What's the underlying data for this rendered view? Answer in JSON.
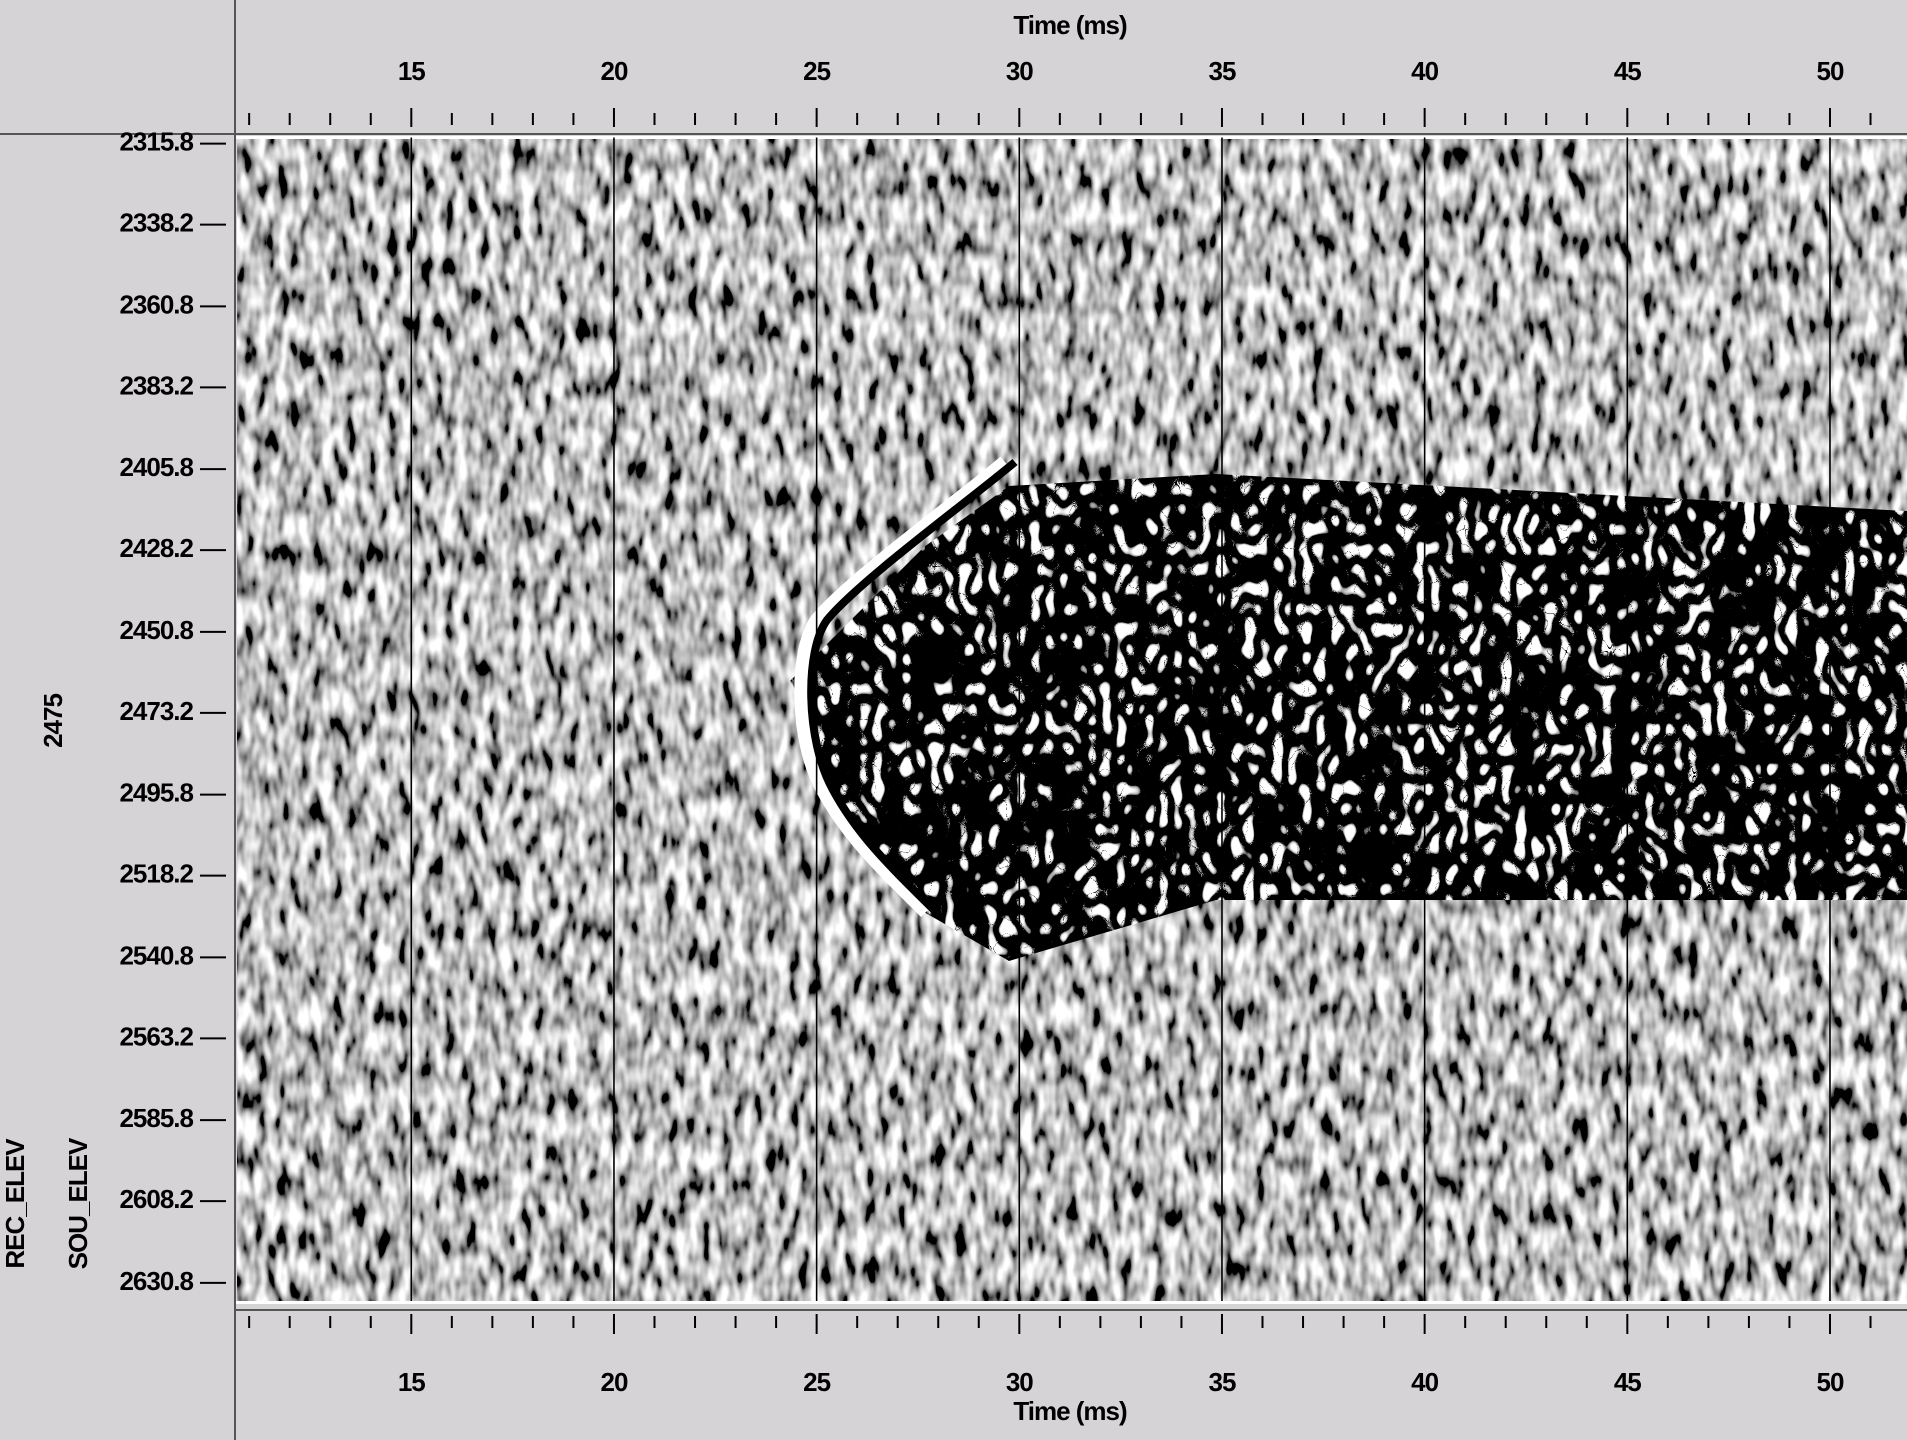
{
  "chart_data": {
    "type": "seismic",
    "x_label": "Time (ms)",
    "y_header": "2475",
    "y_labels": [
      "REC_ELEV",
      "SOU_ELEV"
    ],
    "xlim": [
      10.7,
      51.9
    ],
    "xticks": [
      15,
      20,
      25,
      30,
      35,
      40,
      45,
      50
    ],
    "xminorticks": [
      11,
      12,
      13,
      14,
      16,
      17,
      18,
      19,
      21,
      22,
      23,
      24,
      26,
      27,
      28,
      29,
      31,
      32,
      33,
      34,
      36,
      37,
      38,
      39,
      41,
      42,
      43,
      44,
      46,
      47,
      48,
      49,
      51
    ],
    "ylim": [
      2314.1,
      2635.8
    ],
    "yticks": [
      2315.8,
      2338.2,
      2360.8,
      2383.2,
      2405.8,
      2428.2,
      2450.8,
      2473.2,
      2495.8,
      2518.2,
      2540.8,
      2563.2,
      2585.8,
      2608.2,
      2630.8
    ],
    "grid": true
  }
}
